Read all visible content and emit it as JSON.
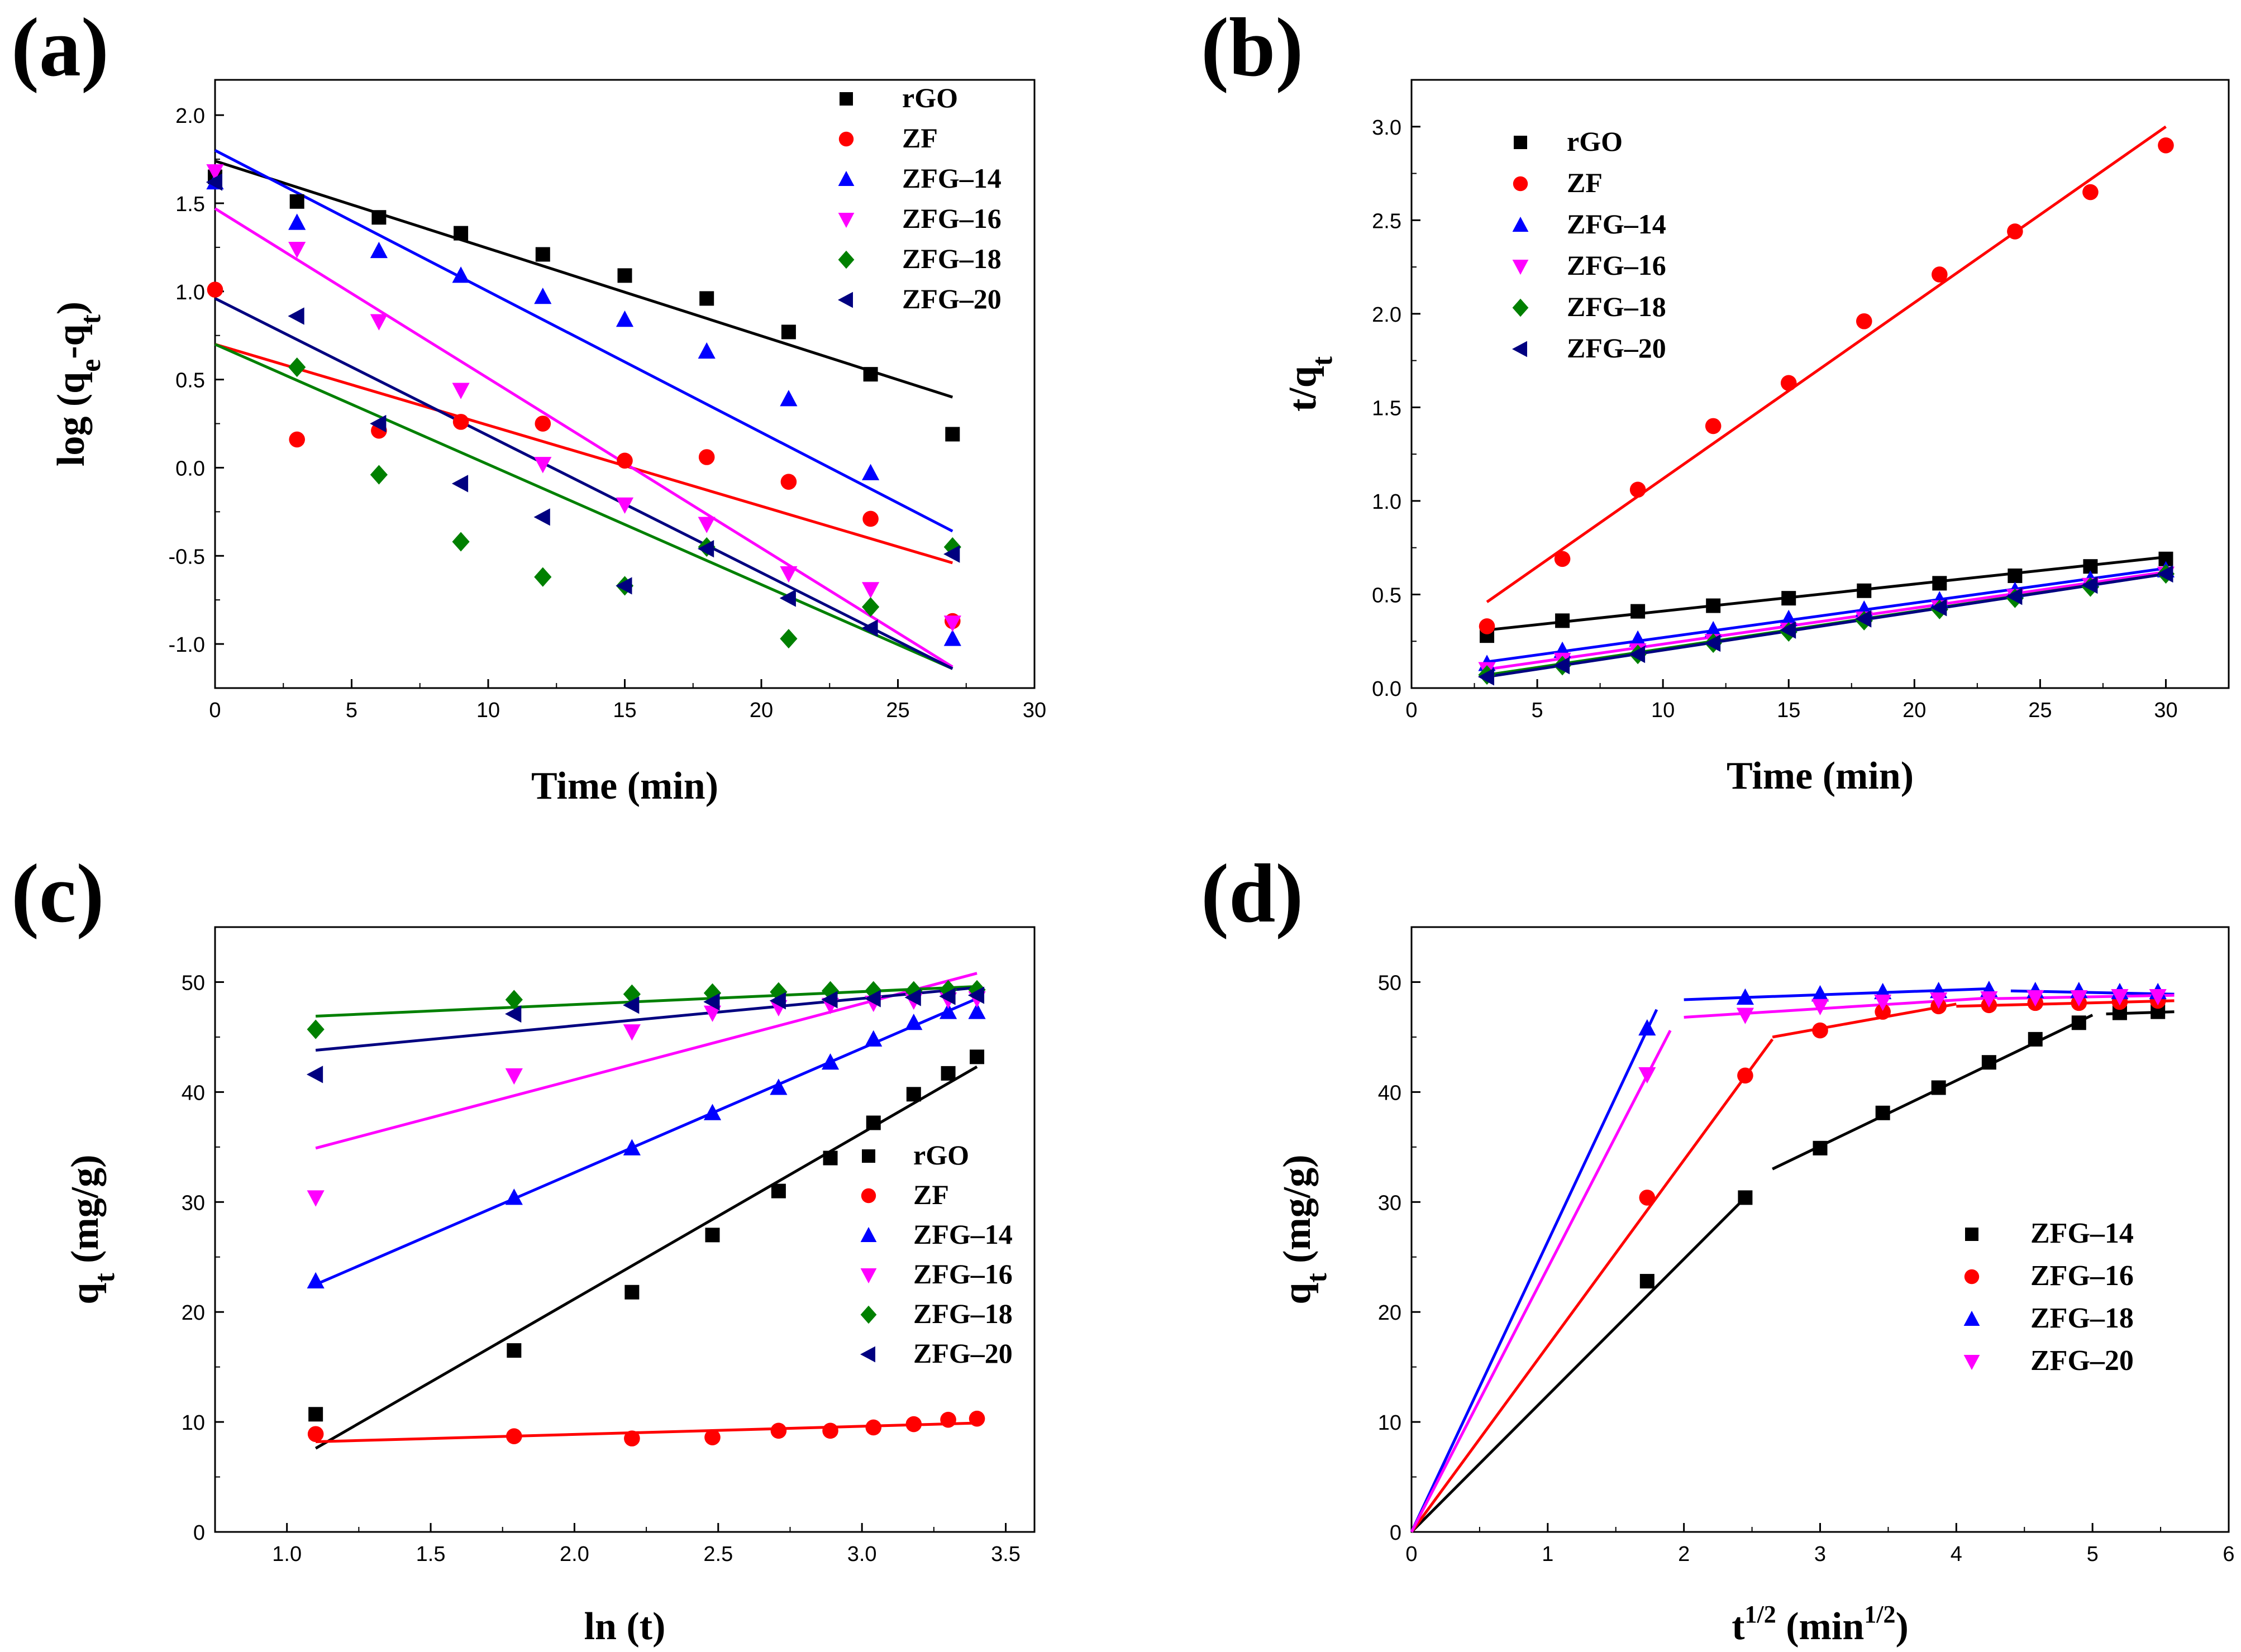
{
  "chart_data": [
    {
      "panel": "(a)",
      "type": "scatter",
      "title": "",
      "xlabel": "Time (min)",
      "ylabel": "log (qe-qt)",
      "xlim": [
        0,
        30
      ],
      "ylim": [
        -1.25,
        2.2
      ],
      "xticks": [
        0,
        5,
        10,
        15,
        20,
        25,
        30
      ],
      "yticks": [
        -1.0,
        -0.5,
        0.0,
        0.5,
        1.0,
        1.5,
        2.0
      ],
      "ytick_decimals": 1,
      "legend_position": "top-right",
      "series": [
        {
          "name": "rGO",
          "color": "#000000",
          "marker": "square",
          "x": [
            0,
            3,
            6,
            9,
            12,
            15,
            18,
            21,
            24,
            27
          ],
          "y": [
            1.65,
            1.51,
            1.42,
            1.33,
            1.21,
            1.09,
            0.96,
            0.77,
            0.53,
            0.19
          ],
          "fit": {
            "x": [
              0,
              27
            ],
            "y": [
              1.74,
              0.4
            ]
          }
        },
        {
          "name": "ZF",
          "color": "#ff0000",
          "marker": "circle",
          "x": [
            0,
            3,
            6,
            9,
            12,
            15,
            18,
            21,
            24,
            27
          ],
          "y": [
            1.01,
            0.16,
            0.21,
            0.26,
            0.25,
            0.04,
            0.06,
            -0.08,
            -0.29,
            -0.87
          ],
          "fit": {
            "x": [
              0,
              27
            ],
            "y": [
              0.7,
              -0.54
            ]
          }
        },
        {
          "name": "ZFG–14",
          "color": "#0000ff",
          "marker": "triangle-up",
          "x": [
            0,
            3,
            6,
            9,
            12,
            15,
            18,
            21,
            24,
            27
          ],
          "y": [
            1.62,
            1.39,
            1.23,
            1.09,
            0.97,
            0.84,
            0.66,
            0.39,
            -0.03,
            -0.97
          ],
          "fit": {
            "x": [
              0,
              27
            ],
            "y": [
              1.8,
              -0.36
            ]
          }
        },
        {
          "name": "ZFG–16",
          "color": "#ff00ff",
          "marker": "triangle-down",
          "x": [
            0,
            3,
            6,
            9,
            12,
            15,
            18,
            21,
            24,
            27
          ],
          "y": [
            1.68,
            1.24,
            0.83,
            0.44,
            0.02,
            -0.21,
            -0.32,
            -0.6,
            -0.69,
            -0.88
          ],
          "fit": {
            "x": [
              0,
              27
            ],
            "y": [
              1.47,
              -1.13
            ]
          }
        },
        {
          "name": "ZFG–18",
          "color": "#008000",
          "marker": "diamond",
          "x": [
            3,
            6,
            9,
            12,
            15,
            18,
            21,
            24,
            27
          ],
          "y": [
            0.57,
            -0.04,
            -0.42,
            -0.62,
            -0.67,
            -0.45,
            -0.97,
            -0.79,
            -0.45
          ],
          "fit": {
            "x": [
              0,
              27
            ],
            "y": [
              0.7,
              -1.14
            ]
          }
        },
        {
          "name": "ZFG–20",
          "color": "#000080",
          "marker": "triangle-left",
          "x": [
            0,
            3,
            6,
            9,
            12,
            15,
            18,
            21,
            24,
            27
          ],
          "y": [
            1.62,
            0.86,
            0.25,
            -0.09,
            -0.28,
            -0.67,
            -0.46,
            -0.74,
            -0.91,
            -0.49
          ],
          "fit": {
            "x": [
              0,
              27
            ],
            "y": [
              0.96,
              -1.14
            ]
          }
        }
      ]
    },
    {
      "panel": "(b)",
      "type": "scatter",
      "title": "",
      "xlabel": "Time (min)",
      "ylabel": "t/qt",
      "xlim": [
        0,
        32.5
      ],
      "ylim": [
        0,
        3.25
      ],
      "xticks": [
        0,
        5,
        10,
        15,
        20,
        25,
        30
      ],
      "yticks": [
        0.0,
        0.5,
        1.0,
        1.5,
        2.0,
        2.5,
        3.0
      ],
      "ytick_decimals": 1,
      "legend_position": "top-left",
      "series": [
        {
          "name": "rGO",
          "color": "#000000",
          "marker": "square",
          "x": [
            3,
            6,
            9,
            12,
            15,
            18,
            21,
            24,
            27,
            30
          ],
          "y": [
            0.28,
            0.36,
            0.41,
            0.44,
            0.48,
            0.52,
            0.56,
            0.6,
            0.65,
            0.69
          ],
          "fit": {
            "x": [
              3,
              30
            ],
            "y": [
              0.31,
              0.7
            ]
          }
        },
        {
          "name": "ZF",
          "color": "#ff0000",
          "marker": "circle",
          "x": [
            3,
            6,
            9,
            12,
            15,
            18,
            21,
            24,
            27,
            30
          ],
          "y": [
            0.33,
            0.69,
            1.06,
            1.4,
            1.63,
            1.96,
            2.21,
            2.44,
            2.65,
            2.9
          ],
          "fit": {
            "x": [
              3,
              30
            ],
            "y": [
              0.46,
              3.0
            ]
          }
        },
        {
          "name": "ZFG–14",
          "color": "#0000ff",
          "marker": "triangle-up",
          "x": [
            3,
            6,
            9,
            12,
            15,
            18,
            21,
            24,
            27,
            30
          ],
          "y": [
            0.13,
            0.2,
            0.26,
            0.31,
            0.37,
            0.42,
            0.47,
            0.52,
            0.58,
            0.63
          ],
          "fit": {
            "x": [
              3,
              30
            ],
            "y": [
              0.14,
              0.64
            ]
          }
        },
        {
          "name": "ZFG–16",
          "color": "#ff00ff",
          "marker": "triangle-down",
          "x": [
            3,
            6,
            9,
            12,
            15,
            18,
            21,
            24,
            27,
            30
          ],
          "y": [
            0.1,
            0.15,
            0.2,
            0.25,
            0.31,
            0.37,
            0.43,
            0.49,
            0.55,
            0.61
          ],
          "fit": {
            "x": [
              3,
              30
            ],
            "y": [
              0.1,
              0.62
            ]
          }
        },
        {
          "name": "ZFG–18",
          "color": "#008000",
          "marker": "diamond",
          "x": [
            3,
            6,
            9,
            12,
            15,
            18,
            21,
            24,
            27,
            30
          ],
          "y": [
            0.07,
            0.12,
            0.18,
            0.24,
            0.3,
            0.36,
            0.42,
            0.48,
            0.54,
            0.61
          ],
          "fit": {
            "x": [
              3,
              30
            ],
            "y": [
              0.07,
              0.61
            ]
          }
        },
        {
          "name": "ZFG–20",
          "color": "#000080",
          "marker": "triangle-left",
          "x": [
            3,
            6,
            9,
            12,
            15,
            18,
            21,
            24,
            27,
            30
          ],
          "y": [
            0.06,
            0.12,
            0.18,
            0.24,
            0.31,
            0.37,
            0.43,
            0.49,
            0.55,
            0.61
          ],
          "fit": {
            "x": [
              3,
              30
            ],
            "y": [
              0.06,
              0.61
            ]
          }
        }
      ]
    },
    {
      "panel": "(c)",
      "type": "scatter",
      "title": "",
      "xlabel": "ln (t)",
      "ylabel": "qt (mg/g)",
      "xlim": [
        0.75,
        3.6
      ],
      "ylim": [
        0,
        55
      ],
      "xticks": [
        1.0,
        1.5,
        2.0,
        2.5,
        3.0,
        3.5
      ],
      "yticks": [
        0,
        10,
        20,
        30,
        40,
        50
      ],
      "xtick_decimals": 1,
      "legend_position": "lower-right",
      "series": [
        {
          "name": "rGO",
          "color": "#000000",
          "marker": "square",
          "x": [
            1.1,
            1.79,
            2.2,
            2.48,
            2.71,
            2.89,
            3.04,
            3.18,
            3.3,
            3.4
          ],
          "y": [
            10.7,
            16.5,
            21.8,
            27.0,
            31.0,
            34.0,
            37.2,
            39.8,
            41.7,
            43.2
          ],
          "fit": {
            "x": [
              1.1,
              3.4
            ],
            "y": [
              7.6,
              42.3
            ]
          }
        },
        {
          "name": "ZF",
          "color": "#ff0000",
          "marker": "circle",
          "x": [
            1.1,
            1.79,
            2.2,
            2.48,
            2.71,
            2.89,
            3.04,
            3.18,
            3.3,
            3.4
          ],
          "y": [
            8.9,
            8.7,
            8.5,
            8.6,
            9.2,
            9.2,
            9.5,
            9.8,
            10.2,
            10.3
          ],
          "fit": {
            "x": [
              1.1,
              3.4
            ],
            "y": [
              8.2,
              9.9
            ]
          }
        },
        {
          "name": "ZFG–14",
          "color": "#0000ff",
          "marker": "triangle-up",
          "x": [
            1.1,
            1.79,
            2.2,
            2.48,
            2.71,
            2.89,
            3.04,
            3.18,
            3.3,
            3.4
          ],
          "y": [
            22.8,
            30.4,
            34.9,
            38.1,
            40.4,
            42.7,
            44.8,
            46.3,
            47.3,
            47.3
          ],
          "fit": {
            "x": [
              1.1,
              3.4
            ],
            "y": [
              22.5,
              48.5
            ]
          }
        },
        {
          "name": "ZFG–16",
          "color": "#ff00ff",
          "marker": "triangle-down",
          "x": [
            1.1,
            1.79,
            2.2,
            2.48,
            2.71,
            2.89,
            3.04,
            3.18,
            3.3,
            3.4
          ],
          "y": [
            30.4,
            41.5,
            45.5,
            47.2,
            47.7,
            47.9,
            48.1,
            48.3,
            48.4,
            48.5
          ],
          "fit": {
            "x": [
              1.1,
              3.4
            ],
            "y": [
              34.9,
              50.8
            ]
          }
        },
        {
          "name": "ZFG–18",
          "color": "#008000",
          "marker": "diamond",
          "x": [
            1.1,
            1.79,
            2.2,
            2.48,
            2.71,
            2.89,
            3.04,
            3.18,
            3.3,
            3.4
          ],
          "y": [
            45.7,
            48.4,
            48.9,
            49.0,
            49.1,
            49.2,
            49.2,
            49.2,
            49.3,
            49.3
          ],
          "fit": {
            "x": [
              1.1,
              3.4
            ],
            "y": [
              46.9,
              49.6
            ]
          }
        },
        {
          "name": "ZFG–20",
          "color": "#000080",
          "marker": "triangle-left",
          "x": [
            1.1,
            1.79,
            2.2,
            2.48,
            2.71,
            2.89,
            3.04,
            3.18,
            3.3,
            3.4
          ],
          "y": [
            41.6,
            47.1,
            47.9,
            48.2,
            48.3,
            48.4,
            48.5,
            48.6,
            48.7,
            48.8
          ],
          "fit": {
            "x": [
              1.1,
              3.4
            ],
            "y": [
              43.8,
              49.5
            ]
          }
        }
      ]
    },
    {
      "panel": "(d)",
      "type": "scatter",
      "title": "",
      "xlabel": "t1/2 (min1/2)",
      "xlabel_parts": {
        "base": "t",
        "sup1": "1/2",
        "mid": " (min",
        "sup2": "1/2",
        "end": ")"
      },
      "ylabel": "qt (mg/g)",
      "xlim": [
        0,
        6
      ],
      "ylim": [
        0,
        55
      ],
      "xticks": [
        0,
        1,
        2,
        3,
        4,
        5,
        6
      ],
      "yticks": [
        0,
        10,
        20,
        30,
        40,
        50
      ],
      "legend_position": "lower-right",
      "series": [
        {
          "name": "ZFG–14",
          "color": "#000000",
          "marker": "square",
          "x": [
            1.73,
            2.45,
            3.0,
            3.46,
            3.87,
            4.24,
            4.58,
            4.9,
            5.2,
            5.48
          ],
          "y": [
            22.8,
            30.4,
            34.9,
            38.1,
            40.4,
            42.7,
            44.8,
            46.3,
            47.2,
            47.3
          ],
          "fits": [
            {
              "x": [
                0,
                2.45
              ],
              "y": [
                0,
                30.4
              ]
            },
            {
              "x": [
                2.65,
                5.0
              ],
              "y": [
                33.0,
                47.0
              ]
            },
            {
              "x": [
                5.1,
                5.6
              ],
              "y": [
                47.1,
                47.3
              ]
            }
          ]
        },
        {
          "name": "ZFG–16",
          "color": "#ff0000",
          "marker": "circle",
          "x": [
            1.73,
            2.45,
            3.0,
            3.46,
            3.87,
            4.24,
            4.58,
            4.9,
            5.2,
            5.48
          ],
          "y": [
            30.4,
            41.5,
            45.6,
            47.3,
            47.8,
            47.9,
            48.1,
            48.1,
            48.2,
            48.3
          ],
          "fits": [
            {
              "x": [
                0,
                2.65
              ],
              "y": [
                0,
                44.8
              ]
            },
            {
              "x": [
                2.65,
                4.0
              ],
              "y": [
                45.0,
                48.0
              ]
            },
            {
              "x": [
                4.0,
                5.6
              ],
              "y": [
                47.8,
                48.3
              ]
            }
          ]
        },
        {
          "name": "ZFG–18",
          "color": "#0000ff",
          "marker": "triangle-up",
          "x": [
            1.73,
            2.45,
            3.0,
            3.46,
            3.87,
            4.24,
            4.58,
            4.9,
            5.2,
            5.48
          ],
          "y": [
            45.8,
            48.6,
            48.9,
            49.1,
            49.2,
            49.3,
            49.2,
            49.2,
            49.1,
            49.1
          ],
          "fits": [
            {
              "x": [
                0,
                1.8
              ],
              "y": [
                0,
                47.5
              ]
            },
            {
              "x": [
                2.0,
                4.25
              ],
              "y": [
                48.4,
                49.4
              ]
            },
            {
              "x": [
                4.4,
                5.6
              ],
              "y": [
                49.2,
                48.9
              ]
            }
          ]
        },
        {
          "name": "ZFG–20",
          "color": "#ff00ff",
          "marker": "triangle-down",
          "x": [
            1.73,
            2.45,
            3.0,
            3.46,
            3.87,
            4.24,
            4.58,
            4.9,
            5.2,
            5.48
          ],
          "y": [
            41.6,
            47.0,
            47.8,
            48.2,
            48.4,
            48.5,
            48.6,
            48.6,
            48.7,
            48.7
          ],
          "fits": [
            {
              "x": [
                0,
                1.9
              ],
              "y": [
                0,
                45.6
              ]
            },
            {
              "x": [
                2.0,
                4.3
              ],
              "y": [
                46.8,
                48.6
              ]
            },
            {
              "x": [
                4.3,
                5.6
              ],
              "y": [
                48.5,
                48.8
              ]
            }
          ]
        }
      ]
    }
  ]
}
